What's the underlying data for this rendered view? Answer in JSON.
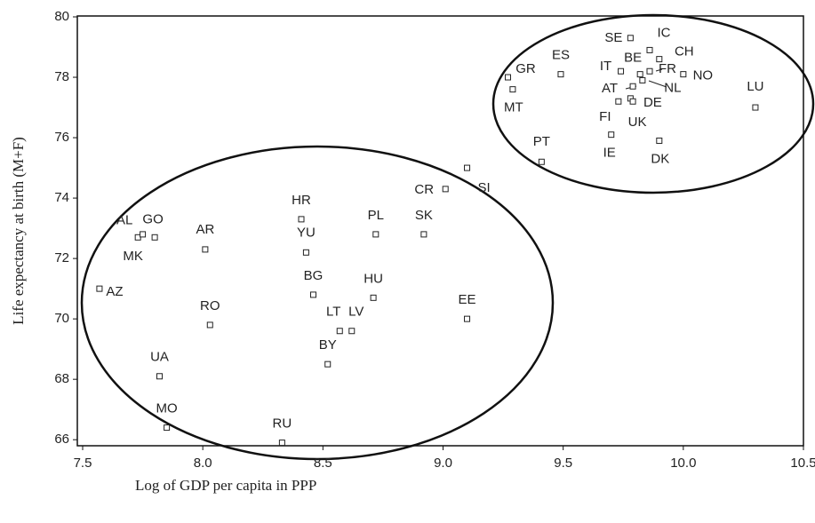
{
  "chart_data": {
    "type": "scatter",
    "y_label": "Life expectancy at birth (M+F)",
    "x_label": "Log of GDP per capita in PPP",
    "labels": [
      "SE",
      "IC",
      "CH",
      "BE",
      "FR",
      "NO",
      "IT",
      "AT",
      "NL",
      "DE",
      "FI",
      "UK",
      "GR",
      "MT",
      "ES",
      "LU",
      "PT",
      "IE",
      "DK",
      "CR",
      "SI",
      "SK",
      "PL",
      "HR",
      "YU",
      "BG",
      "HU",
      "LT",
      "LV",
      "BY",
      "EE",
      "RU",
      "MO",
      "UA",
      "RO",
      "AR",
      "AL",
      "GO",
      "MK",
      "AZ"
    ],
    "x": [
      9.78,
      9.86,
      9.9,
      9.82,
      9.86,
      10.0,
      9.74,
      9.79,
      9.83,
      9.78,
      9.73,
      9.79,
      9.27,
      9.29,
      9.49,
      10.3,
      9.41,
      9.7,
      9.9,
      9.01,
      9.1,
      8.92,
      8.72,
      8.41,
      8.43,
      8.46,
      8.71,
      8.57,
      8.62,
      8.52,
      9.1,
      8.33,
      7.85,
      7.82,
      8.03,
      8.01,
      7.73,
      7.8,
      7.75,
      7.57
    ],
    "values": [
      79.3,
      78.9,
      78.6,
      78.1,
      78.2,
      78.1,
      78.2,
      77.7,
      77.9,
      77.3,
      77.2,
      77.2,
      78.0,
      77.6,
      78.1,
      77.0,
      75.2,
      76.1,
      75.9,
      74.3,
      75.0,
      72.8,
      72.8,
      73.3,
      72.2,
      70.8,
      70.7,
      69.6,
      69.6,
      68.5,
      70.0,
      65.9,
      66.4,
      68.1,
      69.8,
      72.3,
      72.7,
      72.7,
      72.8,
      71.0
    ],
    "xlim": [
      7.5,
      10.5
    ],
    "xticks": [
      7.5,
      {
        "value": 8,
        "label": "8.0"
      },
      8.5,
      {
        "value": 9,
        "label": "9.0"
      },
      9.5,
      {
        "value": 10,
        "label": "10.0"
      },
      10.5
    ],
    "ylim": [
      65.8,
      80
    ],
    "yticks": [
      66,
      68,
      70,
      72,
      74,
      76,
      78,
      80
    ],
    "color": "#222222"
  }
}
